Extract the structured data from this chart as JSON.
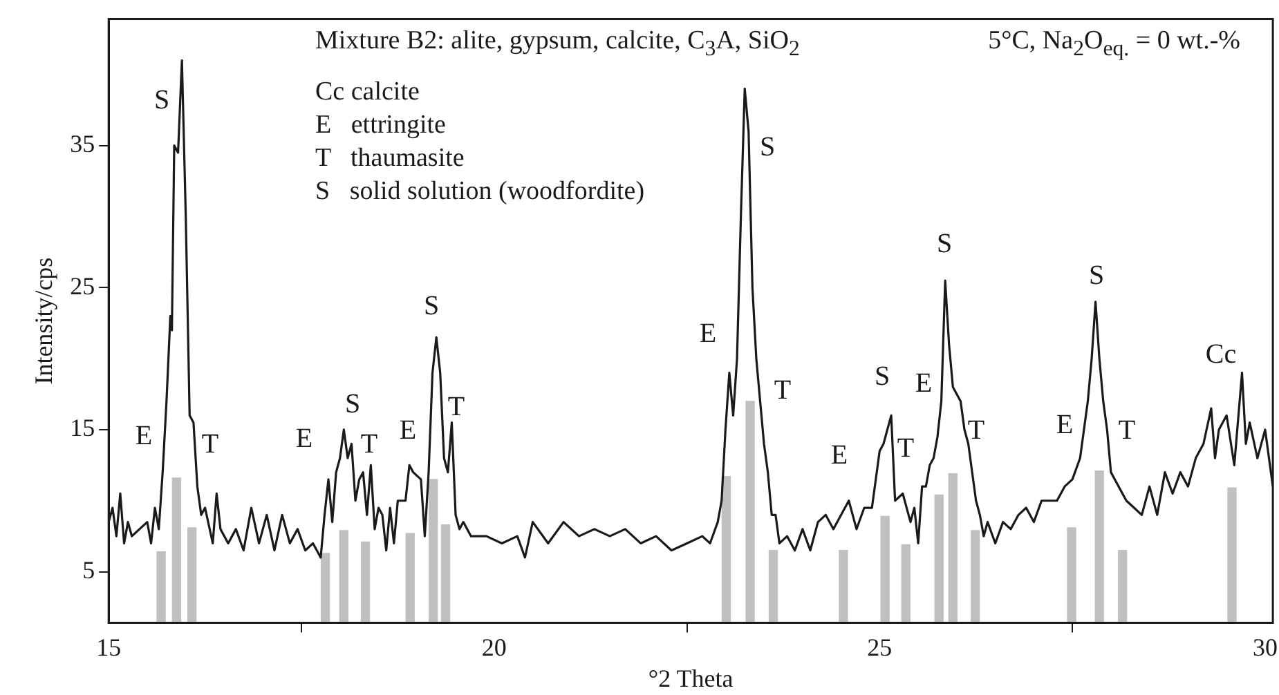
{
  "chart_data": {
    "type": "line",
    "title": "Mixture B2: alite, gypsum, calcite, C$_{3}$A, SiO$_{2}$",
    "subtitle": "5°C, Na$_{2}$O$_{eq.}$ = 0 wt.-%",
    "xlabel": "°2 Theta",
    "ylabel": "Intensity/cps",
    "xlim": [
      15,
      30.1
    ],
    "xticks": [
      15,
      20,
      25,
      30
    ],
    "ylim": [
      1.4,
      43.9
    ],
    "yticks": [
      5,
      15,
      25,
      35
    ],
    "grid": false,
    "legend": false,
    "marker": "none",
    "line_style": "solid",
    "series": [
      {
        "color": "#1a1a1a",
        "x": [
          15.0,
          15.05,
          15.1,
          15.15,
          15.2,
          15.25,
          15.3,
          15.4,
          15.5,
          15.55,
          15.6,
          15.65,
          15.7,
          15.75,
          15.8,
          15.82,
          15.85,
          15.9,
          15.95,
          16.0,
          16.05,
          16.1,
          16.15,
          16.2,
          16.25,
          16.35,
          16.4,
          16.45,
          16.55,
          16.65,
          16.75,
          16.85,
          16.95,
          17.05,
          17.15,
          17.25,
          17.35,
          17.45,
          17.55,
          17.65,
          17.75,
          17.8,
          17.85,
          17.9,
          17.95,
          18.0,
          18.05,
          18.1,
          18.15,
          18.2,
          18.25,
          18.3,
          18.35,
          18.4,
          18.45,
          18.5,
          18.55,
          18.6,
          18.65,
          18.7,
          18.75,
          18.85,
          18.9,
          18.95,
          19.05,
          19.1,
          19.15,
          19.2,
          19.25,
          19.3,
          19.35,
          19.4,
          19.45,
          19.5,
          19.55,
          19.6,
          19.7,
          19.9,
          20.1,
          20.3,
          20.4,
          20.5,
          20.7,
          20.9,
          21.1,
          21.3,
          21.5,
          21.7,
          21.9,
          22.1,
          22.3,
          22.5,
          22.7,
          22.8,
          22.9,
          22.95,
          23.0,
          23.05,
          23.1,
          23.15,
          23.2,
          23.25,
          23.3,
          23.35,
          23.4,
          23.45,
          23.5,
          23.55,
          23.6,
          23.65,
          23.7,
          23.8,
          23.9,
          24.0,
          24.1,
          24.2,
          24.3,
          24.4,
          24.5,
          24.6,
          24.7,
          24.8,
          24.9,
          25.0,
          25.05,
          25.1,
          25.15,
          25.2,
          25.3,
          25.4,
          25.45,
          25.5,
          25.55,
          25.6,
          25.65,
          25.7,
          25.75,
          25.8,
          25.85,
          25.9,
          25.95,
          26.05,
          26.1,
          26.15,
          26.2,
          26.25,
          26.3,
          26.35,
          26.4,
          26.5,
          26.6,
          26.7,
          26.8,
          26.9,
          27.0,
          27.1,
          27.2,
          27.3,
          27.4,
          27.5,
          27.6,
          27.7,
          27.75,
          27.8,
          27.85,
          27.9,
          27.95,
          28.0,
          28.1,
          28.2,
          28.3,
          28.4,
          28.5,
          28.6,
          28.7,
          28.8,
          28.9,
          29.0,
          29.1,
          29.2,
          29.3,
          29.35,
          29.4,
          29.5,
          29.6,
          29.7,
          29.75,
          29.8,
          29.9,
          30.0,
          30.1
        ],
        "values": [
          8.5,
          9.5,
          7.5,
          10.5,
          7,
          8.5,
          7.5,
          8,
          8.5,
          7,
          9.5,
          8,
          12,
          17,
          23,
          22,
          35,
          34.5,
          41,
          30,
          16,
          15.5,
          11,
          9,
          9.5,
          7,
          10.5,
          8,
          7,
          8,
          6.5,
          9.5,
          7,
          9,
          6.5,
          9,
          7,
          8,
          6.5,
          7,
          6,
          9,
          11.5,
          8.5,
          12,
          13,
          15,
          13,
          14,
          10,
          11.5,
          12,
          9,
          12.5,
          8,
          9.5,
          9,
          6.5,
          9.5,
          7,
          10,
          10,
          12.5,
          12,
          11.5,
          7.5,
          12,
          19,
          21.5,
          19,
          13,
          12,
          15.5,
          9,
          8,
          8.5,
          7.5,
          7.5,
          7,
          7.5,
          6,
          8.5,
          7,
          8.5,
          7.5,
          8,
          7.5,
          8,
          7,
          7.5,
          6.5,
          7,
          7.5,
          7,
          8.5,
          10,
          15,
          19,
          16,
          20,
          30,
          39,
          36,
          25,
          20,
          17,
          14,
          12,
          9,
          9,
          7,
          7.5,
          6.5,
          8,
          6.5,
          8.5,
          9,
          8,
          9,
          10,
          8,
          9.5,
          9.5,
          13.5,
          14,
          15,
          16,
          10,
          10.5,
          8.5,
          9.5,
          7,
          11,
          11,
          12.5,
          13,
          14.5,
          17,
          25.5,
          21,
          18,
          17,
          15,
          14,
          12,
          10,
          9,
          7.5,
          8.5,
          7,
          8.5,
          8,
          9,
          9.5,
          8.5,
          10,
          10,
          10,
          11,
          11.5,
          13,
          17,
          20,
          24,
          20,
          17,
          15,
          12,
          11,
          10,
          9.5,
          9,
          11,
          9,
          12,
          10.5,
          12,
          11,
          13,
          14,
          16.5,
          13,
          15,
          16,
          12.5,
          19,
          14,
          15.5,
          13,
          15,
          11
        ]
      },
      {
        "type": "bar",
        "color": "#c0c0c0",
        "x": [
          15.68,
          15.88,
          16.08,
          17.81,
          18.05,
          18.33,
          18.91,
          19.21,
          19.37,
          23.01,
          23.32,
          23.62,
          24.53,
          25.07,
          25.34,
          25.77,
          25.95,
          26.24,
          27.49,
          27.85,
          28.15,
          29.57
        ],
        "values": [
          6.4,
          11.6,
          8.1,
          6.3,
          7.9,
          7.1,
          7.7,
          11.5,
          8.3,
          11.7,
          17,
          6.5,
          6.5,
          8.9,
          6.9,
          10.4,
          11.9,
          7.9,
          8.1,
          12.1,
          6.5,
          10.9
        ]
      }
    ],
    "annotations": [
      "Cc calcite",
      "E   ettringite",
      "T   thaumasite",
      "S   solid solution (woodfordite)",
      "S",
      "E",
      "T",
      "E",
      "S",
      "T",
      "E",
      "S",
      "T",
      "E",
      "S",
      "T",
      "E",
      "S",
      "T",
      "E",
      "S",
      "T",
      "E",
      "S",
      "T",
      "Cc"
    ]
  }
}
